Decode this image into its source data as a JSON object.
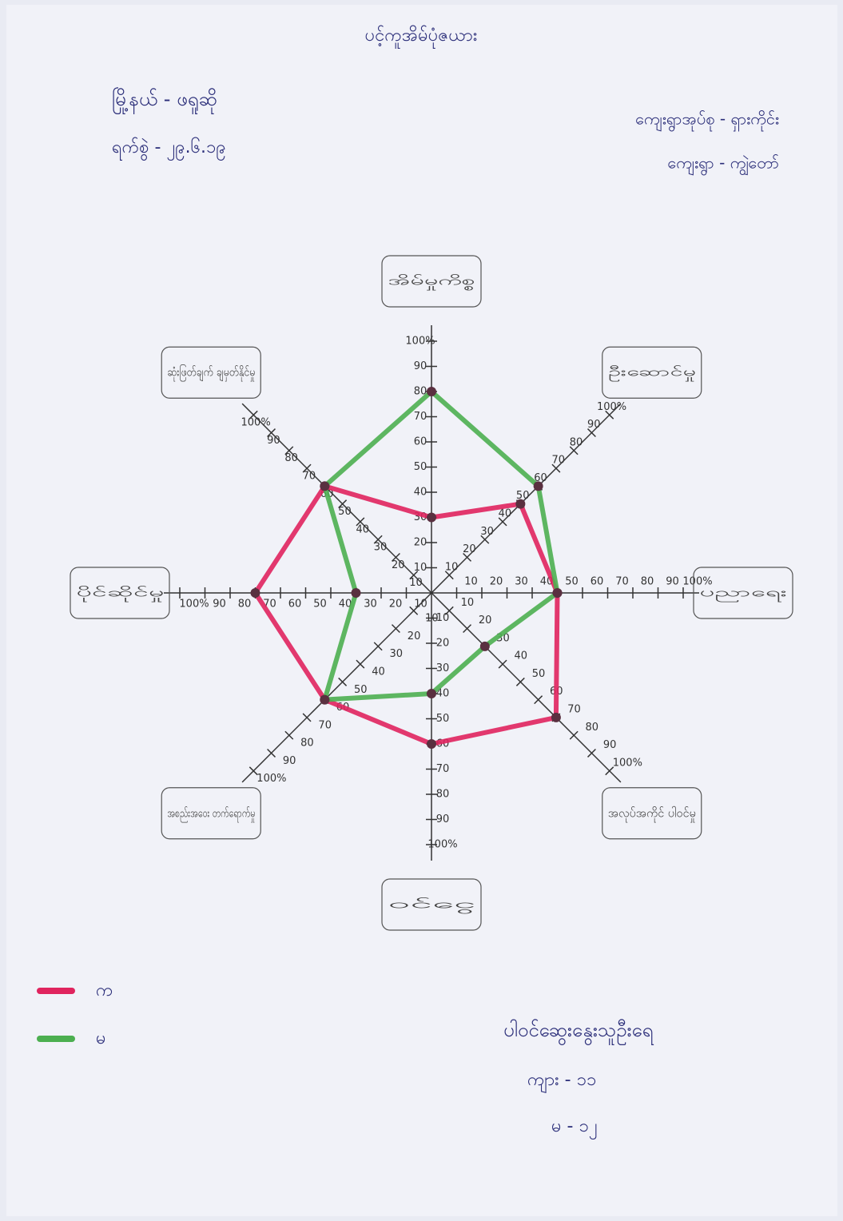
{
  "chart_data": {
    "type": "radar",
    "title": "ပင့်ကူအိမ်ပုံဇယား",
    "annotations": {
      "township": "မြို့နယ် - ဖရူဆို",
      "date": "ရက်စွဲ - ၂၉.၆.၁၉",
      "village_tract": "ကျေးရွာအုပ်စု - ရှားကိုင်း",
      "village": "ကျေးရွာ - ကျွဲတော်",
      "participants_title": "ပါဝင်ဆွေးနွေးသူဦးရေ",
      "participants": [
        "ကျား - ၁၁",
        "မ - ၁၂"
      ]
    },
    "categories": [
      "အိမ်မှုကိစ္စ",
      "ဦးဆောင်မှု",
      "ပညာရေး",
      "အလုပ်အကိုင် ပါဝင်မှု",
      "ဝင်ငွေ",
      "အစည်းအဝေး တက်ရောက်မှု",
      "ပိုင်ဆိုင်မှု",
      "ဆုံးဖြတ်ချက် ချမှတ်နိုင်မှု"
    ],
    "series": [
      {
        "name": "က",
        "color": "#e0245e",
        "values": [
          30,
          50,
          50,
          70,
          60,
          60,
          70,
          60
        ]
      },
      {
        "name": "မ",
        "color": "#4caf50",
        "values": [
          80,
          60,
          50,
          30,
          40,
          60,
          30,
          60
        ]
      }
    ],
    "rlim": [
      0,
      100
    ],
    "rticks": [
      10,
      20,
      30,
      40,
      50,
      60,
      70,
      80,
      90,
      {
        "value": 100,
        "label": "100%"
      }
    ],
    "legend": "bottom-left"
  }
}
